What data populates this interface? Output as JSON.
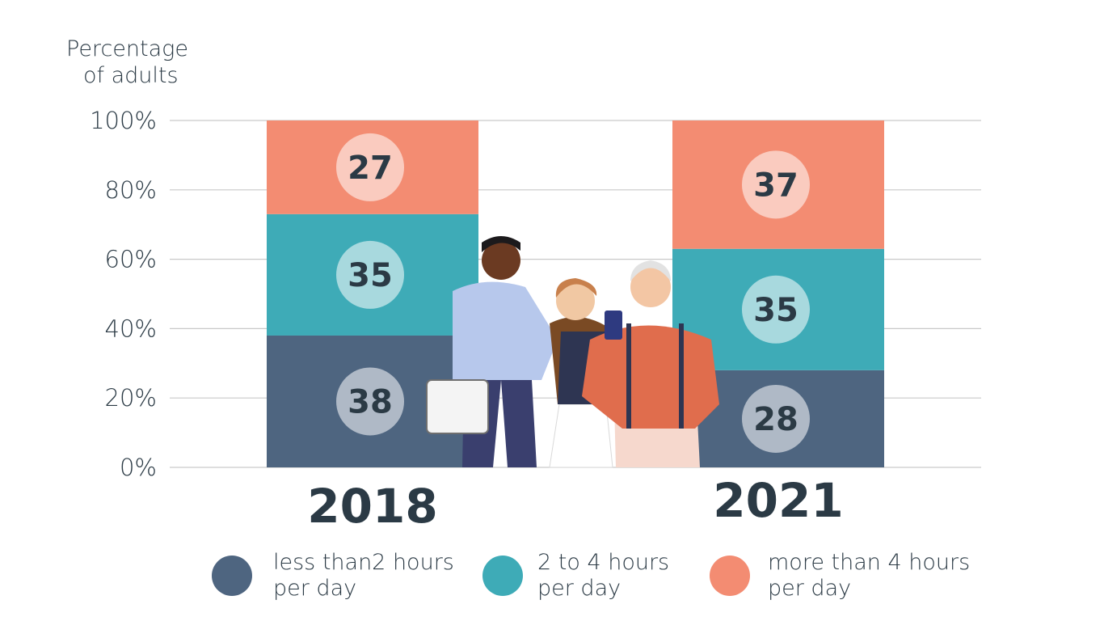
{
  "chart_data": {
    "type": "bar",
    "stacked": true,
    "ylabel": "Percentage of adults",
    "ylabel_lines": [
      "Percentage",
      "of adults"
    ],
    "ylim": [
      0,
      100
    ],
    "yticks": [
      "0%",
      "20%",
      "40%",
      "60%",
      "80%",
      "100%"
    ],
    "categories": [
      "2018",
      "2021"
    ],
    "series": [
      {
        "name": "less than2 hours per day",
        "values": [
          38,
          28
        ],
        "color": "#4e6580"
      },
      {
        "name": "2 to 4 hours per day",
        "values": [
          35,
          35
        ],
        "color": "#3eabb7"
      },
      {
        "name": "more than 4 hours per day",
        "values": [
          27,
          37
        ],
        "color": "#f38c72"
      }
    ],
    "grid": true,
    "legend_position": "bottom"
  },
  "legend": [
    {
      "line1": "less than2 hours",
      "line2": "per day",
      "color": "#4e6580"
    },
    {
      "line1": "2 to 4 hours",
      "line2": "per day",
      "color": "#3eabb7"
    },
    {
      "line1": "more than 4 hours",
      "line2": "per day",
      "color": "#f38c72"
    }
  ]
}
